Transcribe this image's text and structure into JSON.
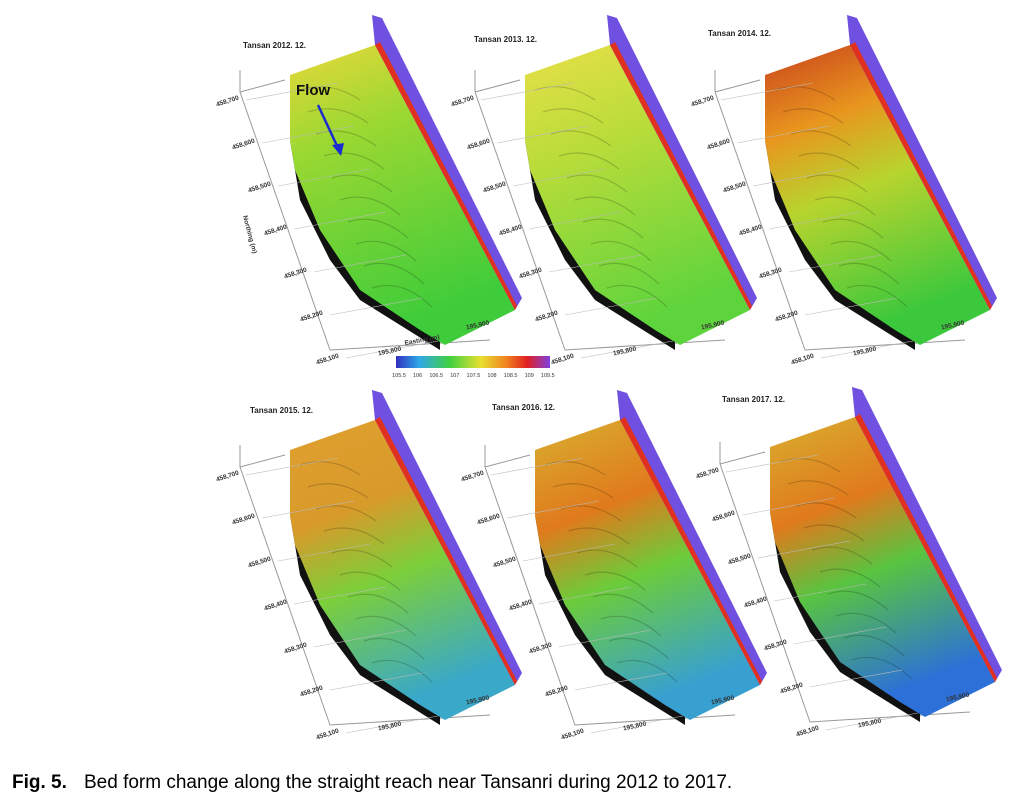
{
  "figure": {
    "panels": [
      {
        "title": "Tansan 2012. 12."
      },
      {
        "title": "Tansan 2013. 12."
      },
      {
        "title": "Tansan 2014. 12."
      },
      {
        "title": "Tansan 2015. 12."
      },
      {
        "title": "Tansan 2016. 12."
      },
      {
        "title": "Tansan 2017. 12."
      }
    ],
    "northing_ticks": [
      "458,700",
      "458,600",
      "458,500",
      "458,400",
      "458,300",
      "458,200",
      "458,100"
    ],
    "easting_ticks": [
      "195,800",
      "195,900"
    ],
    "x_axis_label": "Easting (m)",
    "y_axis_label": "Northing (m)",
    "annotation": "Flow",
    "colorbar_ticks": [
      "105.5",
      "106",
      "106.5",
      "107",
      "107.5",
      "108",
      "108.5",
      "109",
      "109.5"
    ]
  },
  "caption": {
    "label": "Fig. 5.",
    "text": "Bed form change along the straight reach near Tansanri during 2012 to 2017."
  }
}
